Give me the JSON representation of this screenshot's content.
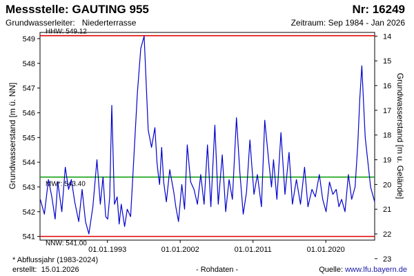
{
  "header": {
    "title": "Messstelle: GAUTING 955",
    "number": "Nr: 16249",
    "aquifer_label": "Grundwasserleiter:",
    "aquifer_value": "Niederterrasse",
    "period": "Zeitraum: Sep 1984 - Jan 2026"
  },
  "footer": {
    "note": "* Abflussjahr (1983-2024)",
    "created_label": "erstellt:",
    "created_date": "15.01.2026",
    "data_status": "- Rohdaten -",
    "source_label": "Quelle:",
    "source_link": "www.lfu.bayern.de"
  },
  "colors": {
    "series": "#0000cc",
    "extreme_lines": "#e00000",
    "mean_line": "#009900"
  },
  "chart_data": {
    "type": "line",
    "ylabel": "Grundwasserstand [m ü. NN]",
    "ylabel_right": "Grundwasserstand [m u. Gelände]",
    "ylim": [
      540.85,
      549.25
    ],
    "yticks": [
      541,
      542,
      543,
      544,
      545,
      546,
      547,
      548,
      549
    ],
    "y2ticks": [
      14,
      15,
      16,
      17,
      18,
      19,
      20,
      21,
      22,
      23
    ],
    "y2_reference": {
      "level_nn": 563.1,
      "note": "depth = 563.1 - level"
    },
    "xlim": [
      "1984-09-01",
      "2026-01-15"
    ],
    "xticks": [
      "01.01.1993",
      "01.01.2002",
      "01.01.2011",
      "01.01.2020"
    ],
    "reference_lines": [
      {
        "label": "HHW: 549.12",
        "value": 549.12,
        "color_key": "extreme_lines"
      },
      {
        "label": "MW*: 543.40",
        "value": 543.4,
        "color_key": "mean_line"
      },
      {
        "label": "NNW: 541.00",
        "value": 541.0,
        "color_key": "extreme_lines"
      }
    ],
    "grid": false,
    "series": [
      {
        "x": [
          "1984-09",
          "1985-03",
          "1985-09",
          "1986-02",
          "1986-07",
          "1986-11",
          "1987-05",
          "1987-10",
          "1988-03",
          "1988-07",
          "1988-12",
          "1989-06",
          "1989-11",
          "1990-04",
          "1990-09",
          "1991-03",
          "1991-09",
          "1992-02",
          "1992-06",
          "1992-10",
          "1993-01",
          "1993-04",
          "1993-07",
          "1993-11",
          "1994-03",
          "1994-06",
          "1994-09",
          "1995-02",
          "1995-06",
          "1995-11",
          "1996-04",
          "1996-09",
          "1997-02",
          "1997-07",
          "1998-01",
          "1998-06",
          "1998-11",
          "1999-02",
          "1999-04",
          "1999-06",
          "1999-09",
          "1999-12",
          "2000-04",
          "2000-09",
          "2001-03",
          "2001-06",
          "2001-10",
          "2002-03",
          "2002-07",
          "2002-11",
          "2003-04",
          "2003-09",
          "2004-02",
          "2004-07",
          "2004-12",
          "2005-05",
          "2005-10",
          "2006-04",
          "2006-09",
          "2007-03",
          "2007-08",
          "2008-01",
          "2008-06",
          "2008-12",
          "2009-05",
          "2009-10",
          "2010-03",
          "2010-08",
          "2011-02",
          "2011-07",
          "2012-01",
          "2012-06",
          "2012-12",
          "2013-04",
          "2013-07",
          "2013-12",
          "2014-06",
          "2014-12",
          "2015-06",
          "2015-11",
          "2016-05",
          "2016-11",
          "2017-05",
          "2017-10",
          "2018-04",
          "2018-09",
          "2019-03",
          "2019-08",
          "2020-01",
          "2020-06",
          "2020-11",
          "2021-04",
          "2021-08",
          "2021-12",
          "2022-05",
          "2022-10",
          "2023-03",
          "2023-08",
          "2023-12",
          "2024-03",
          "2024-06",
          "2024-08",
          "2024-11",
          "2025-03",
          "2025-07",
          "2025-11",
          "2026-01"
        ],
        "values": [
          542.5,
          541.9,
          543.3,
          542.6,
          541.7,
          543.2,
          542.0,
          543.8,
          542.9,
          543.3,
          542.4,
          541.6,
          542.9,
          541.6,
          541.1,
          542.2,
          544.1,
          542.3,
          543.4,
          541.8,
          541.7,
          542.6,
          546.3,
          542.3,
          542.6,
          541.5,
          542.3,
          541.4,
          542.1,
          541.8,
          544.3,
          546.8,
          548.6,
          549.1,
          545.3,
          544.6,
          545.4,
          544.0,
          543.5,
          543.1,
          544.6,
          543.2,
          542.4,
          543.7,
          542.8,
          542.2,
          541.6,
          543.1,
          542.1,
          544.7,
          543.2,
          542.9,
          542.3,
          543.5,
          542.3,
          544.7,
          542.2,
          545.5,
          542.3,
          544.3,
          542.0,
          543.3,
          542.5,
          545.8,
          543.6,
          541.9,
          542.8,
          544.9,
          542.7,
          543.5,
          542.2,
          545.7,
          544.0,
          543.0,
          544.1,
          542.5,
          545.2,
          542.7,
          544.4,
          542.3,
          543.3,
          542.3,
          543.8,
          542.2,
          542.9,
          542.6,
          543.5,
          542.5,
          542.0,
          543.2,
          542.7,
          542.9,
          542.2,
          542.5,
          542.0,
          543.5,
          542.5,
          543.0,
          544.7,
          546.6,
          547.9,
          546.7,
          545.0,
          544.0,
          543.0,
          542.6,
          542.4
        ]
      }
    ]
  }
}
